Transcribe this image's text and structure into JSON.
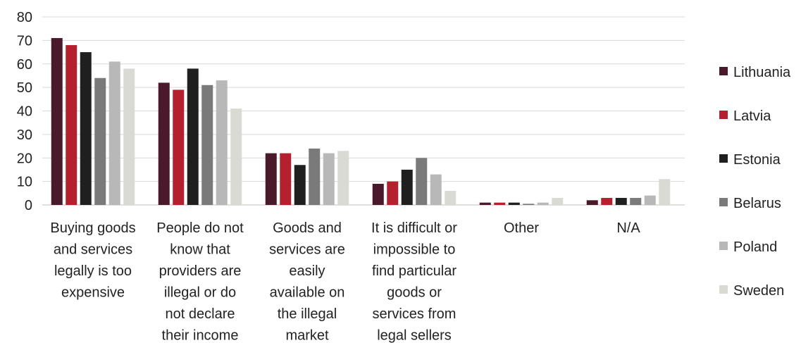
{
  "chart_data": {
    "type": "bar",
    "title": "",
    "xlabel": "",
    "ylabel": "",
    "ylim": [
      0,
      80
    ],
    "yticks": [
      0,
      10,
      20,
      30,
      40,
      50,
      60,
      70,
      80
    ],
    "grid": true,
    "legend_position": "right",
    "categories": [
      [
        "Buying goods",
        "and services",
        "legally is too",
        "expensive"
      ],
      [
        "People do not",
        "know that",
        "providers are",
        "illegal or do",
        "not declare",
        "their income"
      ],
      [
        "Goods and",
        "services are",
        "easily",
        "available on",
        "the illegal",
        "market"
      ],
      [
        "It is difficult or",
        "impossible to",
        "find particular",
        "goods or",
        "services from",
        "legal sellers"
      ],
      [
        "Other"
      ],
      [
        "N/A"
      ]
    ],
    "series": [
      {
        "name": "Lithuania",
        "color": "#4a1a2c",
        "values": [
          71,
          52,
          22,
          9,
          1,
          2
        ]
      },
      {
        "name": "Latvia",
        "color": "#b5202f",
        "values": [
          68,
          49,
          22,
          10,
          1,
          3
        ]
      },
      {
        "name": "Estonia",
        "color": "#1f1f1f",
        "values": [
          65,
          58,
          17,
          15,
          1,
          3
        ]
      },
      {
        "name": "Belarus",
        "color": "#7a7a7a",
        "values": [
          54,
          51,
          24,
          20,
          0.5,
          3
        ]
      },
      {
        "name": "Poland",
        "color": "#b8b8b8",
        "values": [
          61,
          53,
          22,
          13,
          1,
          4
        ]
      },
      {
        "name": "Sweden",
        "color": "#dadad5",
        "values": [
          58,
          41,
          23,
          6,
          3,
          11
        ]
      }
    ]
  }
}
